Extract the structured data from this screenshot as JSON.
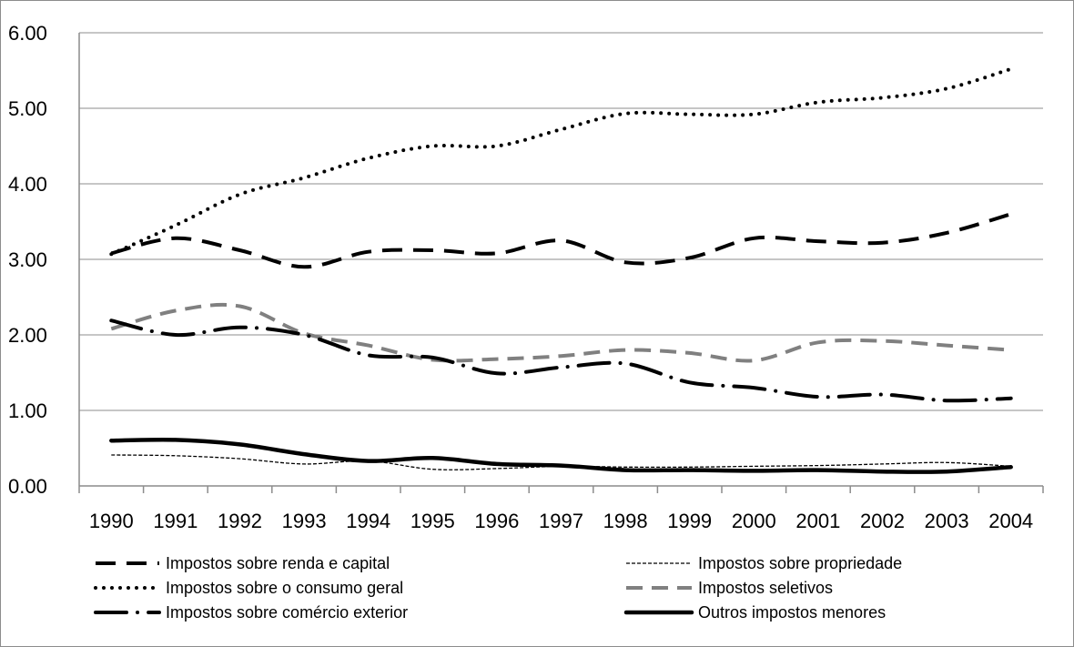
{
  "chart_data": {
    "type": "line",
    "title": "",
    "xlabel": "",
    "ylabel": "",
    "categories": [
      "1990",
      "1991",
      "1992",
      "1993",
      "1994",
      "1995",
      "1996",
      "1997",
      "1998",
      "1999",
      "2000",
      "2001",
      "2002",
      "2003",
      "2004"
    ],
    "ylim": [
      0,
      6
    ],
    "yticks": [
      0,
      1,
      2,
      3,
      4,
      5,
      6
    ],
    "ytick_labels": [
      "0.00",
      "1.00",
      "2.00",
      "3.00",
      "4.00",
      "5.00",
      "6.00"
    ],
    "grid": true,
    "legend_position": "bottom",
    "series": [
      {
        "name": "Impostos sobre renda e capital",
        "style": "long-dash",
        "color": "#000000",
        "values": [
          3.08,
          3.28,
          3.12,
          2.9,
          3.1,
          3.12,
          3.08,
          3.25,
          2.96,
          3.02,
          3.28,
          3.24,
          3.22,
          3.35,
          3.6
        ]
      },
      {
        "name": "Impostos sobre propriedade",
        "style": "thin-dash",
        "color": "#000000",
        "values": [
          0.41,
          0.4,
          0.36,
          0.29,
          0.33,
          0.22,
          0.23,
          0.26,
          0.25,
          0.25,
          0.26,
          0.27,
          0.29,
          0.31,
          0.26
        ]
      },
      {
        "name": "Impostos sobre o consumo geral",
        "style": "dotted",
        "color": "#000000",
        "values": [
          3.07,
          3.45,
          3.86,
          4.08,
          4.34,
          4.5,
          4.5,
          4.72,
          4.93,
          4.92,
          4.92,
          5.08,
          5.14,
          5.26,
          5.52
        ]
      },
      {
        "name": "Impostos seletivos",
        "style": "grey-dash",
        "color": "#808080",
        "values": [
          2.08,
          2.32,
          2.38,
          2.02,
          1.86,
          1.67,
          1.68,
          1.72,
          1.8,
          1.76,
          1.66,
          1.9,
          1.92,
          1.86,
          1.8
        ]
      },
      {
        "name": "Impostos sobre comércio exterior",
        "style": "dash-dot",
        "color": "#000000",
        "values": [
          2.19,
          2.0,
          2.1,
          2.0,
          1.73,
          1.7,
          1.49,
          1.57,
          1.62,
          1.37,
          1.3,
          1.18,
          1.21,
          1.13,
          1.16
        ]
      },
      {
        "name": "Outros impostos menores",
        "style": "solid",
        "color": "#000000",
        "values": [
          0.6,
          0.61,
          0.55,
          0.42,
          0.33,
          0.37,
          0.29,
          0.27,
          0.21,
          0.21,
          0.2,
          0.21,
          0.19,
          0.19,
          0.25
        ]
      }
    ]
  }
}
